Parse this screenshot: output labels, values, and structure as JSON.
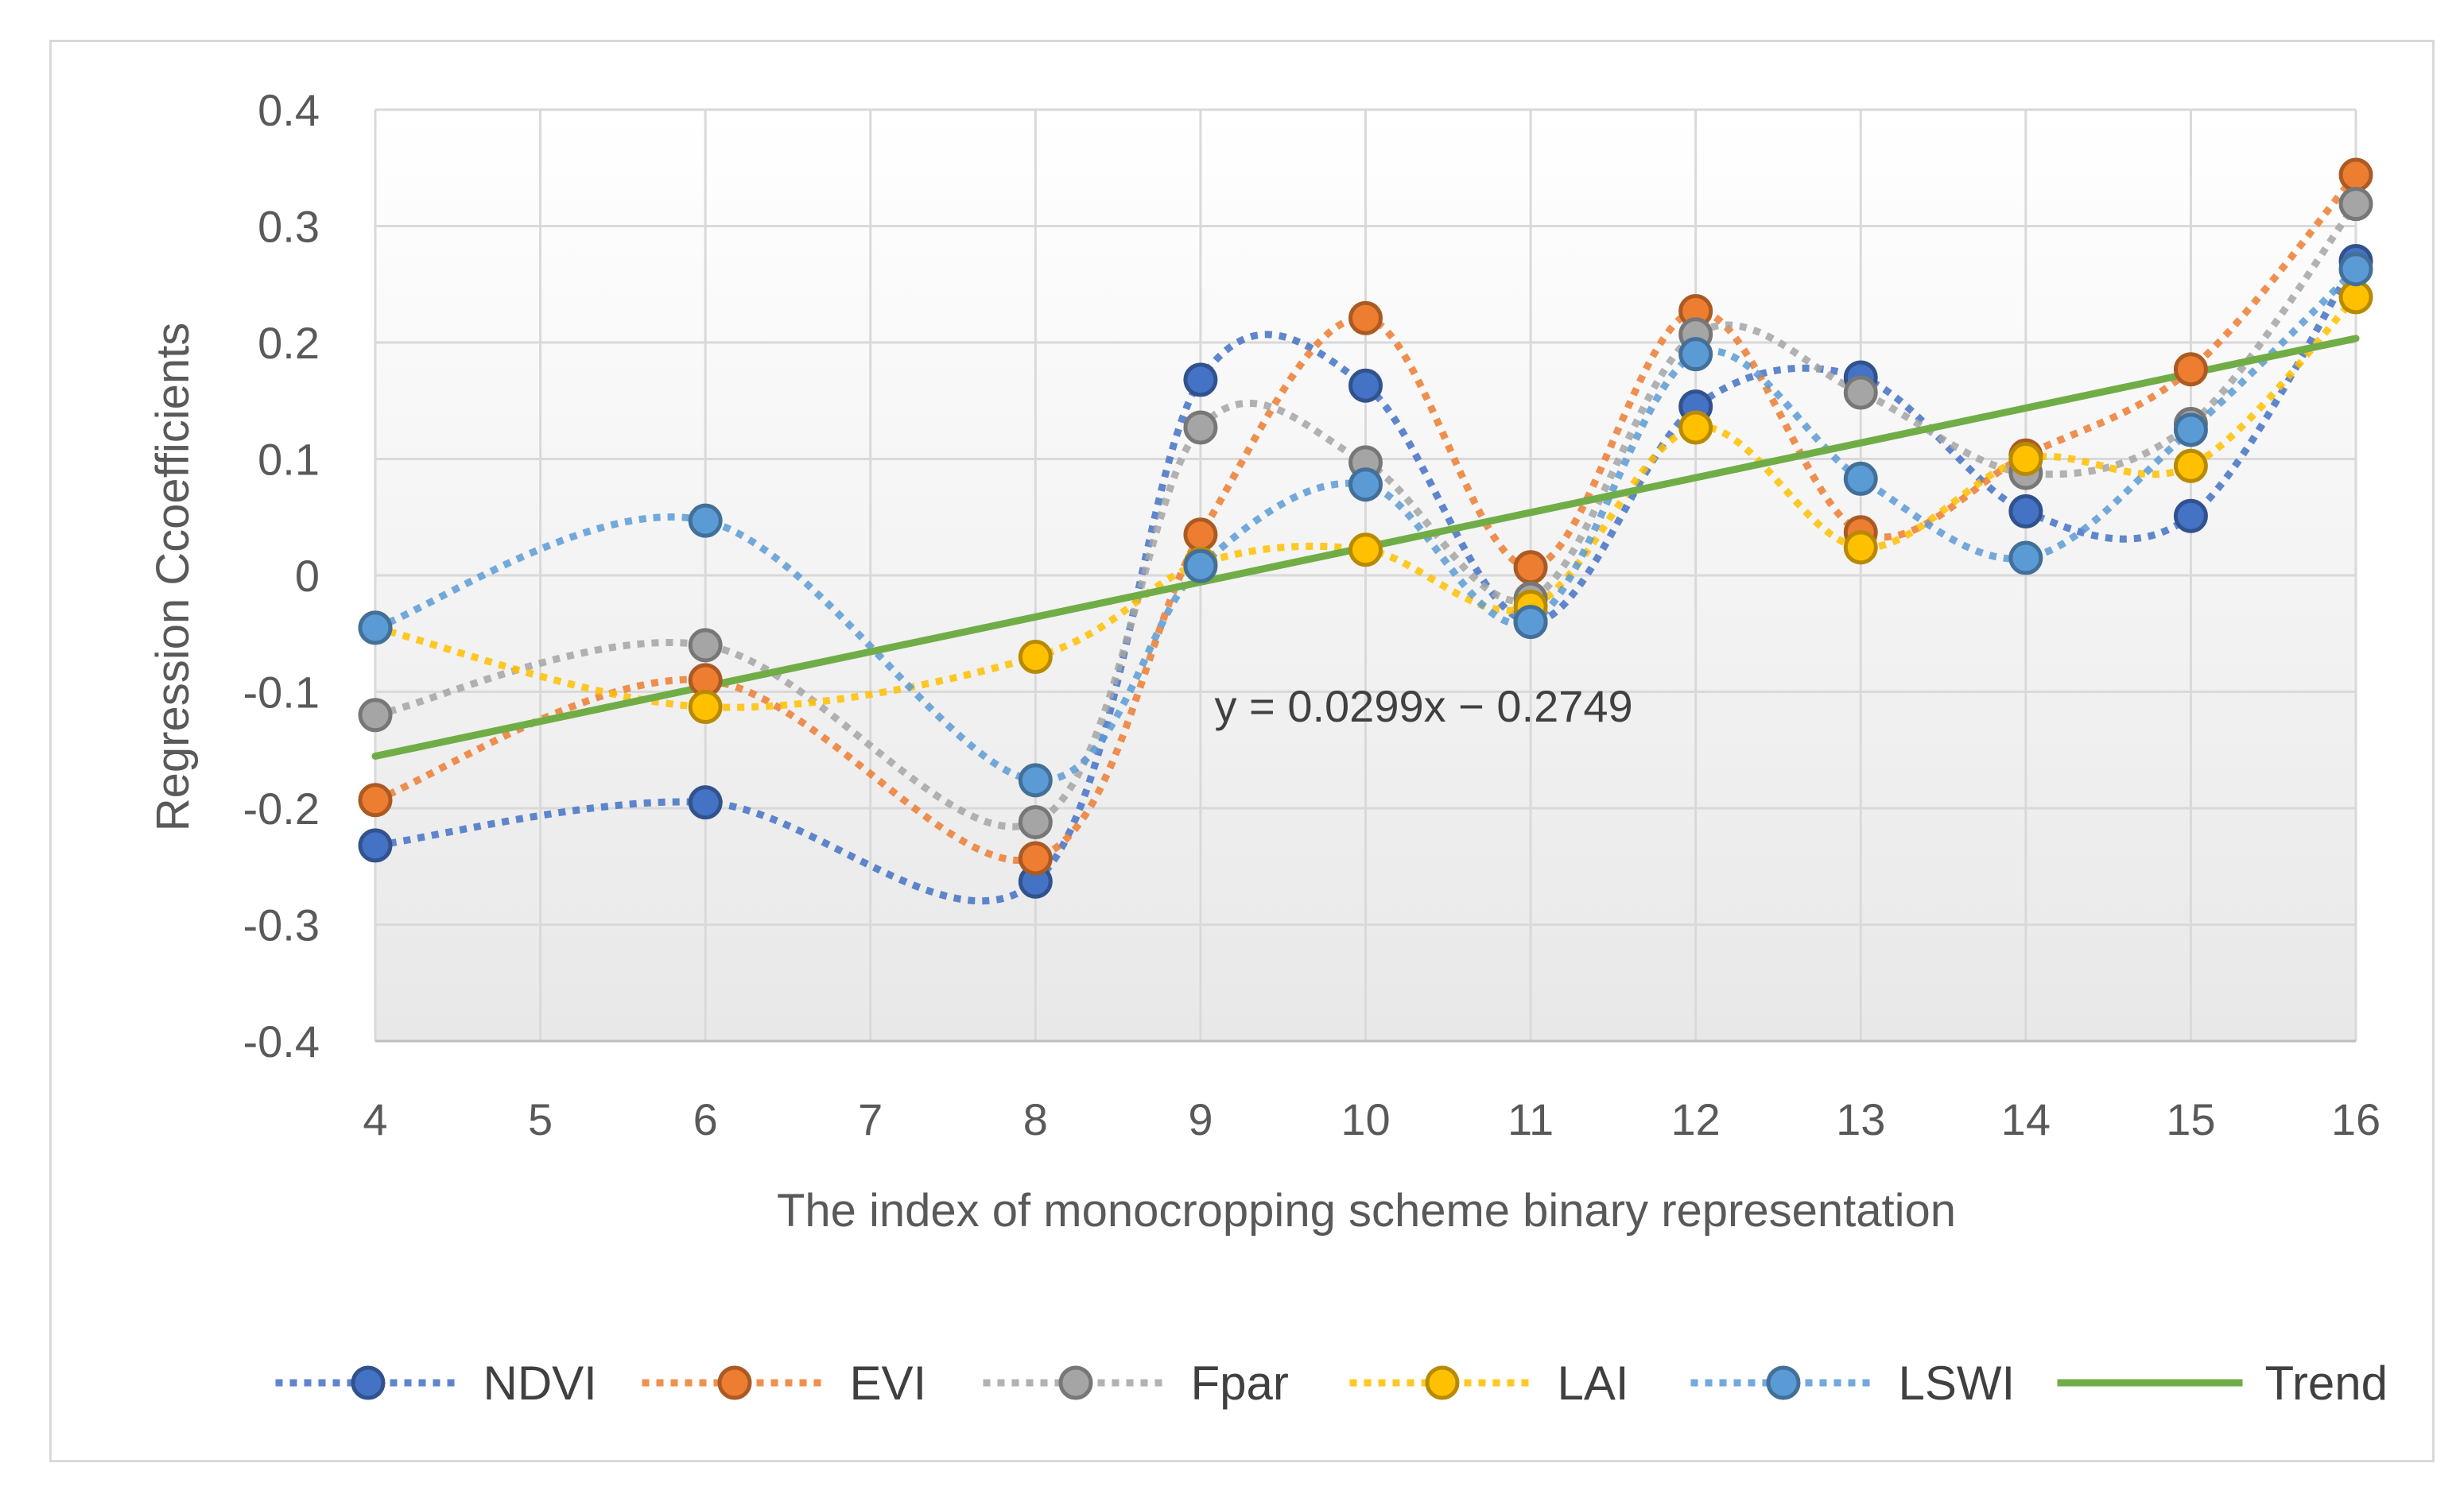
{
  "chart_data": {
    "type": "line",
    "title": "",
    "xlabel": "The index of monocropping scheme binary representation",
    "ylabel": "Regression Ccoefficients",
    "ylim": [
      -0.4,
      0.4
    ],
    "yticks": [
      -0.4,
      -0.3,
      -0.2,
      -0.1,
      0,
      0.1,
      0.2,
      0.3,
      0.4
    ],
    "ytick_labels": [
      "-0.4",
      "-0.3",
      "-0.2",
      "-0.1",
      "0",
      "0.1",
      "0.2",
      "0.3",
      "0.4"
    ],
    "categories": [
      "4",
      "5",
      "6",
      "7",
      "8",
      "9",
      "10",
      "11",
      "12",
      "13",
      "14",
      "15",
      "16"
    ],
    "grid": true,
    "legend_position": "bottom",
    "series": [
      {
        "name": "NDVI",
        "color": "#4472c4",
        "style": "dotted-smooth-markers",
        "x": [
          "4",
          "6",
          "8",
          "9",
          "10",
          "11",
          "12",
          "13",
          "14",
          "15",
          "16"
        ],
        "values": [
          -0.232,
          -0.195,
          -0.263,
          0.168,
          0.163,
          -0.04,
          0.145,
          0.17,
          0.055,
          0.051,
          0.27
        ]
      },
      {
        "name": "EVI",
        "color": "#ed7d31",
        "style": "dotted-smooth-markers",
        "x": [
          "4",
          "6",
          "8",
          "9",
          "10",
          "11",
          "12",
          "13",
          "14",
          "15",
          "16"
        ],
        "values": [
          -0.193,
          -0.09,
          -0.243,
          0.035,
          0.221,
          0.007,
          0.227,
          0.037,
          0.103,
          0.177,
          0.344
        ]
      },
      {
        "name": "Fpar",
        "color": "#a5a5a5",
        "style": "dotted-smooth-markers",
        "x": [
          "4",
          "6",
          "8",
          "9",
          "10",
          "11",
          "12",
          "13",
          "14",
          "15",
          "16"
        ],
        "values": [
          -0.12,
          -0.06,
          -0.212,
          0.127,
          0.097,
          -0.02,
          0.207,
          0.157,
          0.088,
          0.13,
          0.319
        ]
      },
      {
        "name": "LAI",
        "color": "#ffc000",
        "style": "dotted-smooth-markers",
        "x": [
          "4",
          "6",
          "8",
          "9",
          "10",
          "11",
          "12",
          "13",
          "14",
          "15",
          "16"
        ],
        "values": [
          -0.045,
          -0.113,
          -0.07,
          0.01,
          0.022,
          -0.027,
          0.127,
          0.024,
          0.1,
          0.094,
          0.239
        ]
      },
      {
        "name": "LSWI",
        "color": "#5b9bd5",
        "style": "dotted-smooth-markers",
        "x": [
          "4",
          "6",
          "8",
          "9",
          "10",
          "11",
          "12",
          "13",
          "14",
          "15",
          "16"
        ],
        "values": [
          -0.045,
          0.047,
          -0.176,
          0.008,
          0.078,
          -0.04,
          0.19,
          0.083,
          0.015,
          0.125,
          0.263
        ]
      },
      {
        "name": "Trend",
        "color": "#70ad47",
        "style": "solid-line",
        "x": [
          "4",
          "16"
        ],
        "values": [
          -0.1553,
          0.2035
        ]
      }
    ],
    "annotations": [
      {
        "text": "y = 0.0299x − 0.2749",
        "x": 10,
        "y": -0.112
      }
    ]
  }
}
